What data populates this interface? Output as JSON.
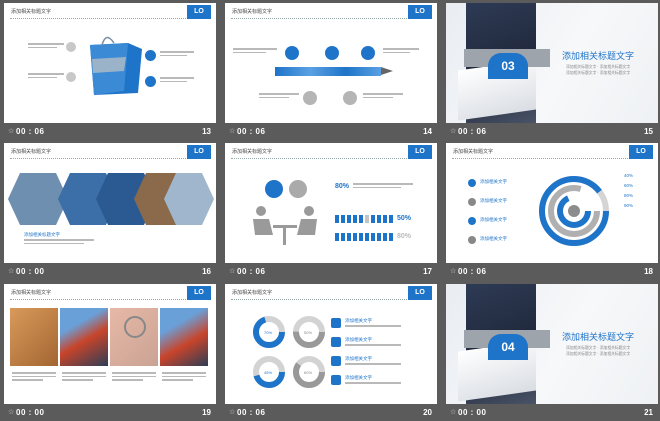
{
  "thumbnails": [
    {
      "number": "13",
      "time": "00 : 06",
      "header": "添加相关标题文字",
      "logo": "LO"
    },
    {
      "number": "14",
      "time": "00 : 06",
      "header": "添加相关标题文字",
      "logo": "LO"
    },
    {
      "number": "15",
      "time": "00 : 06",
      "cover_number": "03",
      "title": "添加相关标题文字",
      "subtitle": "添加相关标题文字"
    },
    {
      "number": "16",
      "time": "00 : 00",
      "header": "添加相关标题文字",
      "logo": "LO",
      "caption": "添加相关标题文字"
    },
    {
      "number": "17",
      "time": "00 : 06",
      "header": "添加相关标题文字",
      "logo": "LO",
      "pct_top": "80%",
      "pct_mid": "50%",
      "pct_bottom": "80%"
    },
    {
      "number": "18",
      "time": "00 : 06",
      "header": "添加相关标题文字",
      "logo": "LO",
      "labels": [
        "添加相关文字",
        "添加相关文字",
        "添加相关文字",
        "添加相关文字"
      ],
      "ring_pcts": [
        "40%",
        "60%",
        "80%",
        "90%"
      ]
    },
    {
      "number": "19",
      "time": "00 : 00",
      "header": "添加相关标题文字",
      "logo": "LO"
    },
    {
      "number": "20",
      "time": "00 : 06",
      "header": "添加相关标题文字",
      "logo": "LO",
      "donut_labels": [
        "70%",
        "50%",
        "45%",
        "60%"
      ],
      "item_titles": [
        "添加相关文字",
        "添加相关文字",
        "添加相关文字",
        "添加相关文字"
      ]
    },
    {
      "number": "21",
      "time": "00 : 00",
      "cover_number": "04",
      "title": "添加相关标题文字",
      "subtitle": "添加相关标题文字"
    }
  ],
  "star_icon": "☆",
  "colors": {
    "accent": "#1e74c8",
    "background": "#5b5b5b",
    "gray": "#b9b9b9"
  }
}
